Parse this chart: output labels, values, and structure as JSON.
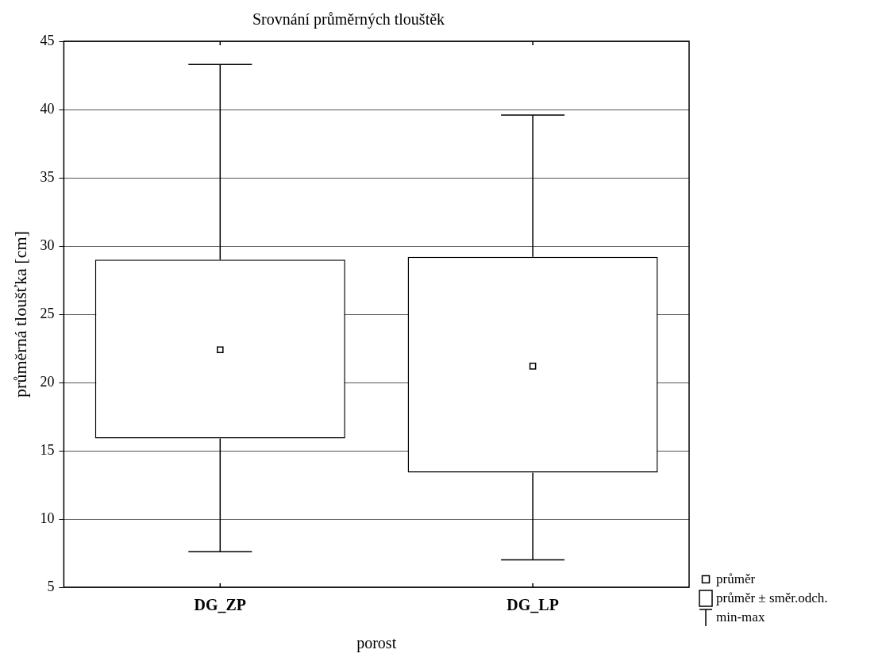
{
  "chart_data": {
    "type": "box",
    "title": "Srovnání průměrných tlouštěk",
    "xlabel": "porost",
    "ylabel": "průměrná tloušťka [cm]",
    "categories": [
      "DG_ZP",
      "DG_LP"
    ],
    "boxes": [
      {
        "low": 7.6,
        "q1": 15.9,
        "q3": 29.0,
        "high": 43.3,
        "mean": 22.4
      },
      {
        "low": 7.0,
        "q1": 13.4,
        "q3": 29.2,
        "high": 39.6,
        "mean": 21.2
      }
    ],
    "ylim": [
      5,
      45
    ],
    "yticks": [
      5,
      10,
      15,
      20,
      25,
      30,
      35,
      40,
      45
    ],
    "grid": "y",
    "marker": "square",
    "annotations": [
      "průměr",
      "průměr ± směr.odch.",
      "min-max"
    ]
  }
}
